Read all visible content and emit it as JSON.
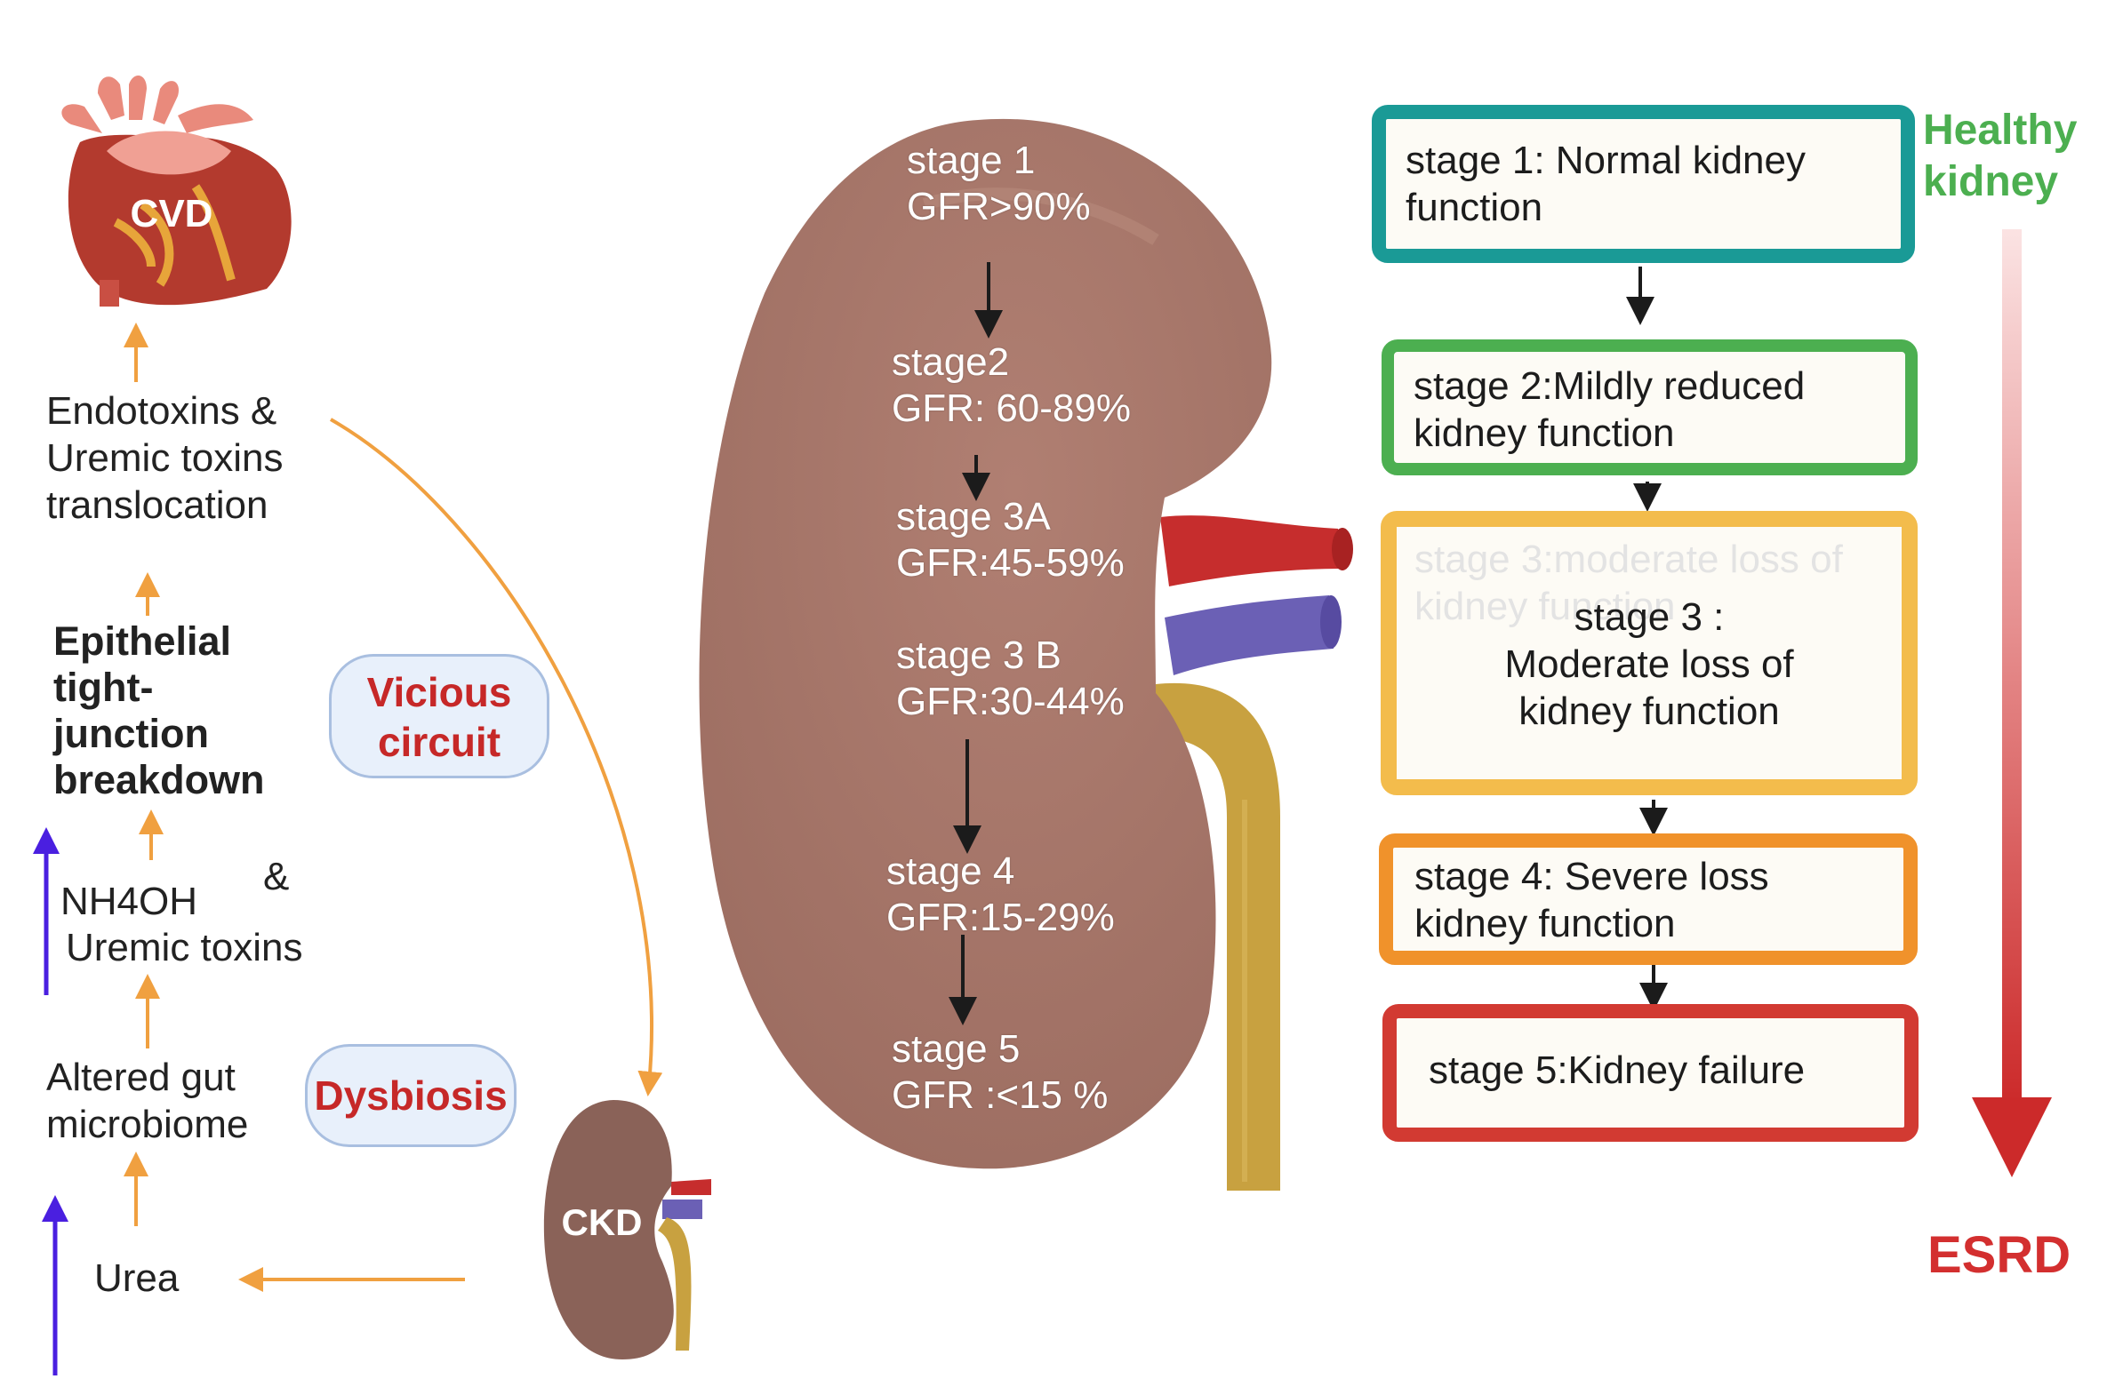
{
  "left_panel": {
    "cvd_label": "CVD",
    "endotoxins_label": [
      "Endotoxins &",
      "Uremic toxins",
      "translocation"
    ],
    "epithelial_label": [
      "Epithelial",
      "tight-",
      "junction",
      "breakdown"
    ],
    "vicious_circuit_label": [
      "Vicious",
      "circuit"
    ],
    "ammonium_amp": "&",
    "nh4oh_label": "NH4OH",
    "uremic_toxins_label": "Uremic toxins",
    "gut_label": [
      "Altered gut",
      "microbiome"
    ],
    "dysbiosis_label": "Dysbiosis",
    "urea_label": "Urea",
    "ckd_label": "CKD"
  },
  "kidney_stages": [
    {
      "stage": "stage 1",
      "gfr": "GFR>90%"
    },
    {
      "stage": "stage2",
      "gfr": "GFR: 60-89%"
    },
    {
      "stage": "stage 3A",
      "gfr": "GFR:45-59%"
    },
    {
      "stage": "stage 3 B",
      "gfr": "GFR:30-44%"
    },
    {
      "stage": "stage 4",
      "gfr": "GFR:15-29%"
    },
    {
      "stage": "stage 5",
      "gfr": "GFR :<15 %"
    }
  ],
  "stage_boxes": [
    {
      "lines": [
        "stage 1: Normal kidney",
        "function"
      ],
      "color": "#1a9a96"
    },
    {
      "lines": [
        "stage 2:Mildly reduced",
        "kidney function"
      ],
      "color": "#4caf50"
    },
    {
      "ghost_lines": [
        "stage 3:moderate loss of",
        "kidney function"
      ],
      "lines": [
        "stage 3 :",
        "Moderate loss of",
        "kidney function"
      ],
      "color": "#f3bc4c"
    },
    {
      "lines": [
        "stage 4: Severe loss",
        "kidney function"
      ],
      "color": "#f0922b"
    },
    {
      "lines": [
        "stage 5:Kidney failure"
      ],
      "color": "#d23a32"
    }
  ],
  "scale": {
    "top_label": [
      "Healthy",
      "kidney"
    ],
    "top_color": "#4caf50",
    "bottom_label": "ESRD",
    "bottom_color": "#d32f2f"
  },
  "colors": {
    "kidney": "#a5766a",
    "artery": "#c62d2d",
    "vein": "#6b60b5",
    "ureter": "#c8a140",
    "orange_arrow": "#f0a040",
    "purple_arrow": "#4a1fe0"
  }
}
